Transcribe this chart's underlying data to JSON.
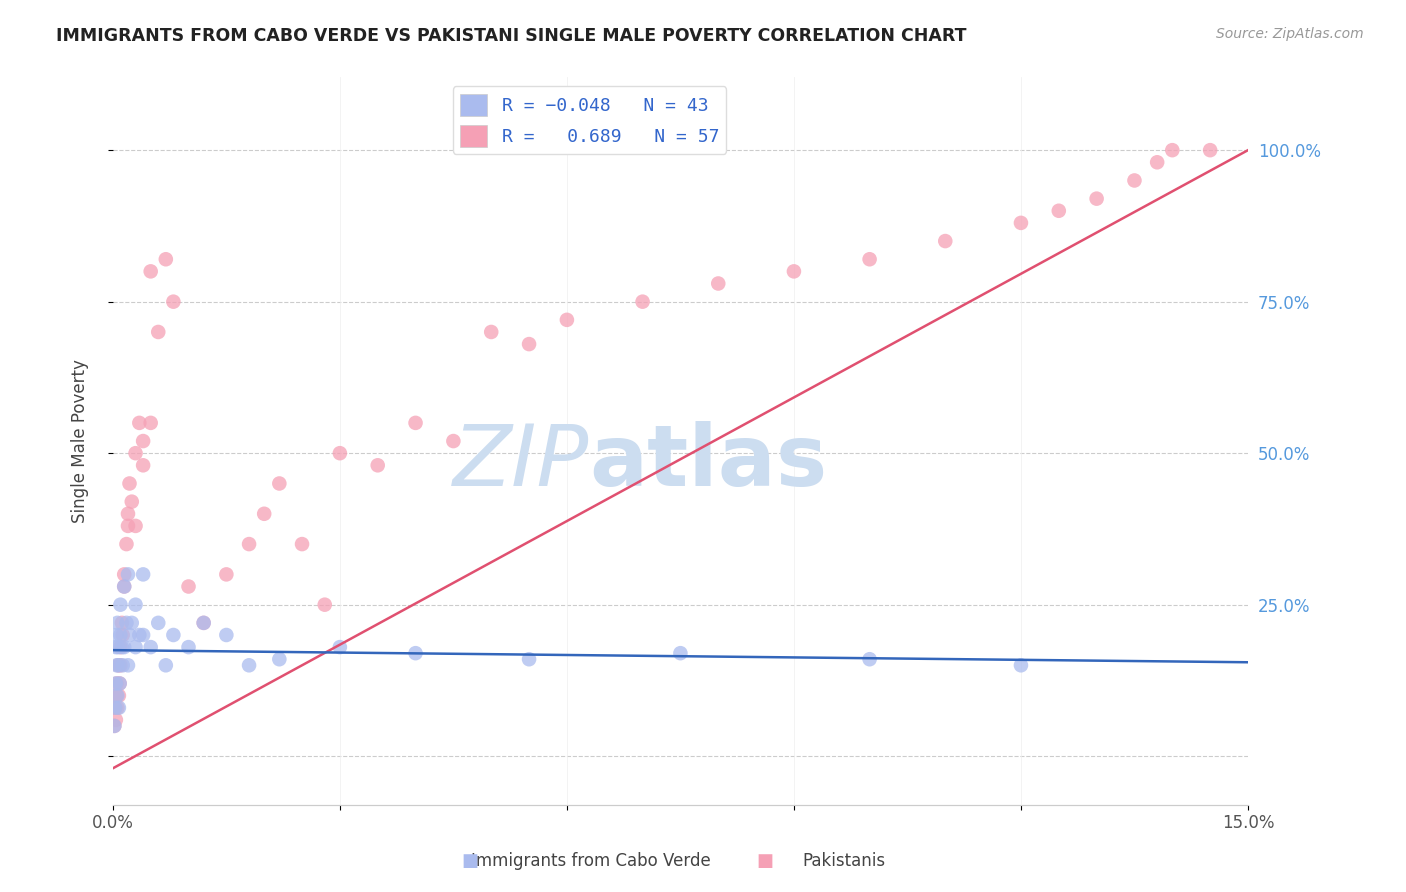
{
  "title": "IMMIGRANTS FROM CABO VERDE VS PAKISTANI SINGLE MALE POVERTY CORRELATION CHART",
  "source": "Source: ZipAtlas.com",
  "ylabel": "Single Male Poverty",
  "x_min": 0.0,
  "x_max": 0.15,
  "y_min": -0.08,
  "y_max": 1.12,
  "cabo_verde_color": "#aabbee",
  "pakistani_color": "#f5a0b5",
  "cabo_verde_line_color": "#3366bb",
  "pakistani_line_color": "#e05070",
  "watermark_zip": "ZIP",
  "watermark_atlas": "atlas",
  "watermark_color_zip": "#ccddf0",
  "watermark_color_atlas": "#ccddf0",
  "cabo_verde_R": -0.048,
  "pakistani_R": 0.689,
  "cabo_verde_N": 43,
  "pakistani_N": 57,
  "cv_x": [
    0.0002,
    0.0003,
    0.0004,
    0.0004,
    0.0005,
    0.0005,
    0.0006,
    0.0006,
    0.0007,
    0.0008,
    0.0008,
    0.0009,
    0.001,
    0.001,
    0.0012,
    0.0013,
    0.0015,
    0.0015,
    0.0018,
    0.002,
    0.002,
    0.0022,
    0.0025,
    0.003,
    0.003,
    0.0035,
    0.004,
    0.004,
    0.005,
    0.006,
    0.007,
    0.008,
    0.01,
    0.012,
    0.015,
    0.018,
    0.022,
    0.03,
    0.04,
    0.055,
    0.075,
    0.1,
    0.12
  ],
  "cv_y": [
    0.05,
    0.08,
    0.12,
    0.18,
    0.15,
    0.2,
    0.22,
    0.1,
    0.18,
    0.15,
    0.08,
    0.12,
    0.2,
    0.25,
    0.18,
    0.15,
    0.28,
    0.18,
    0.22,
    0.3,
    0.15,
    0.2,
    0.22,
    0.18,
    0.25,
    0.2,
    0.3,
    0.2,
    0.18,
    0.22,
    0.15,
    0.2,
    0.18,
    0.22,
    0.2,
    0.15,
    0.16,
    0.18,
    0.17,
    0.16,
    0.17,
    0.16,
    0.15
  ],
  "pk_x": [
    0.0002,
    0.0003,
    0.0004,
    0.0005,
    0.0005,
    0.0006,
    0.0007,
    0.0008,
    0.0009,
    0.001,
    0.001,
    0.0012,
    0.0013,
    0.0015,
    0.0015,
    0.0018,
    0.002,
    0.002,
    0.0022,
    0.0025,
    0.003,
    0.003,
    0.0035,
    0.004,
    0.004,
    0.005,
    0.005,
    0.006,
    0.007,
    0.008,
    0.01,
    0.012,
    0.015,
    0.018,
    0.02,
    0.022,
    0.025,
    0.028,
    0.03,
    0.035,
    0.04,
    0.045,
    0.05,
    0.055,
    0.06,
    0.07,
    0.08,
    0.09,
    0.1,
    0.11,
    0.12,
    0.125,
    0.13,
    0.135,
    0.138,
    0.14,
    0.145
  ],
  "pk_y": [
    0.05,
    0.08,
    0.06,
    0.1,
    0.12,
    0.08,
    0.15,
    0.1,
    0.12,
    0.18,
    0.15,
    0.22,
    0.2,
    0.3,
    0.28,
    0.35,
    0.4,
    0.38,
    0.45,
    0.42,
    0.38,
    0.5,
    0.55,
    0.48,
    0.52,
    0.55,
    0.8,
    0.7,
    0.82,
    0.75,
    0.28,
    0.22,
    0.3,
    0.35,
    0.4,
    0.45,
    0.35,
    0.25,
    0.5,
    0.48,
    0.55,
    0.52,
    0.7,
    0.68,
    0.72,
    0.75,
    0.78,
    0.8,
    0.82,
    0.85,
    0.88,
    0.9,
    0.92,
    0.95,
    0.98,
    1.0,
    1.0
  ],
  "pk_line_x0": 0.0,
  "pk_line_y0": -0.02,
  "pk_line_x1": 0.15,
  "pk_line_y1": 1.0,
  "cv_line_x0": 0.0,
  "cv_line_y0": 0.175,
  "cv_line_x1": 0.15,
  "cv_line_y1": 0.155
}
